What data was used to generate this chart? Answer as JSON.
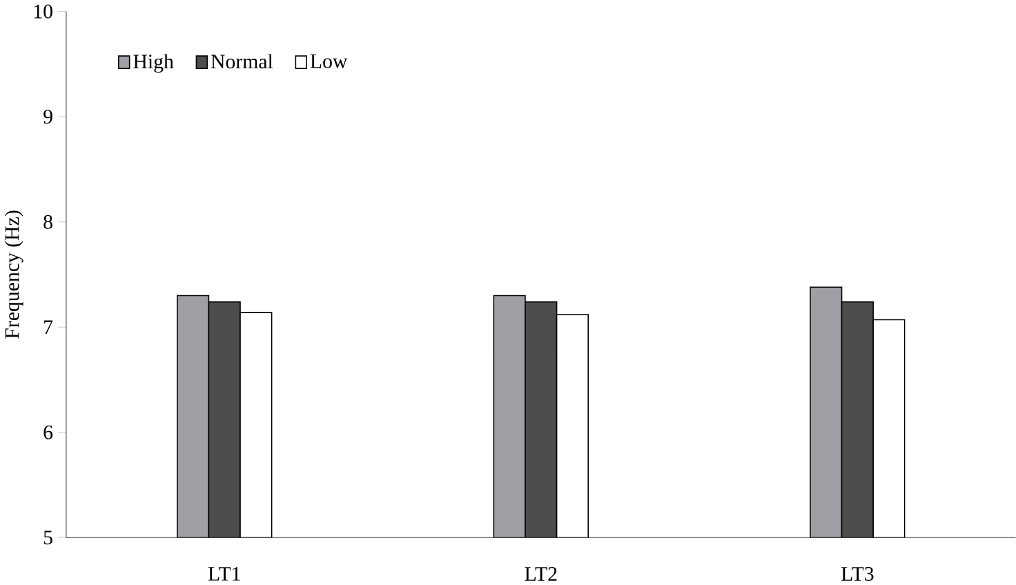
{
  "chart_data": {
    "type": "bar",
    "ylabel": "Frequency (Hz)",
    "categories": [
      "LT1",
      "LT2",
      "LT3"
    ],
    "series": [
      {
        "name": "High",
        "color": "#a09fa5",
        "values": [
          7.3,
          7.3,
          7.38
        ]
      },
      {
        "name": "Normal",
        "color": "#4d4d4d",
        "values": [
          7.24,
          7.24,
          7.24
        ]
      },
      {
        "name": "Low",
        "color": "#ffffff",
        "values": [
          7.14,
          7.12,
          7.07
        ]
      }
    ],
    "ylim": [
      5,
      10
    ],
    "yticks": [
      5,
      6,
      7,
      8,
      9,
      10
    ],
    "legend": "top left",
    "grid": false
  }
}
